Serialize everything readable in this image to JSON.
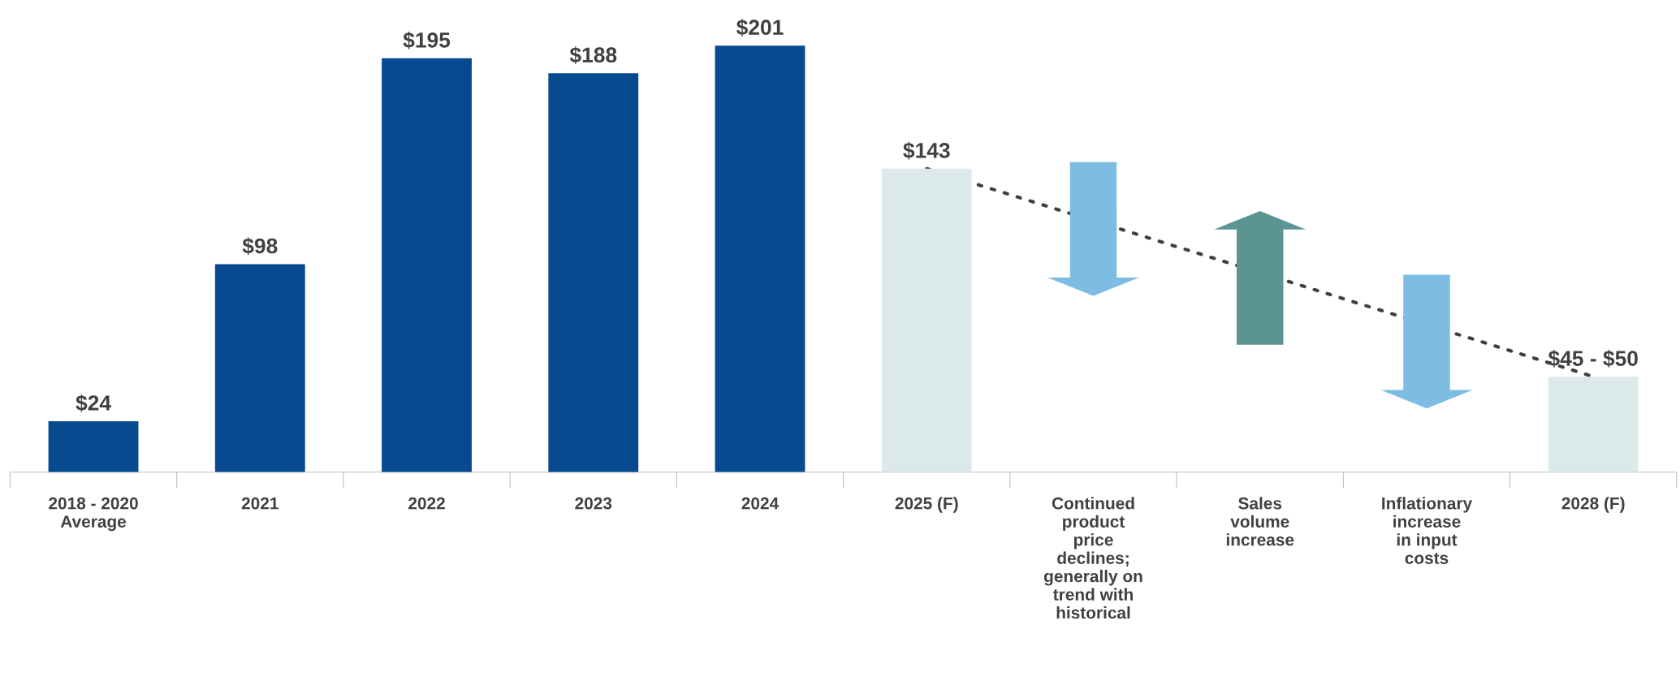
{
  "chart_data": {
    "type": "bar",
    "categories": [
      "2018 - 2020\nAverage",
      "2021",
      "2022",
      "2023",
      "2024",
      "2025 (F)",
      "Continued\nproduct\nprice\ndeclines;\ngenerally on\ntrend with\nhistorical",
      "Sales\nvolume\nincrease",
      "Inflationary\nincrease\nin input\ncosts",
      "2028 (F)"
    ],
    "series": [
      {
        "colors": [
          "#074a8f",
          "#074a8f",
          "#074a8f",
          "#074a8f",
          "#074a8f",
          "#dce9ea",
          null,
          null,
          null,
          "#dce9ea"
        ],
        "values": [
          24,
          98,
          195,
          188,
          201,
          143,
          null,
          null,
          null,
          45
        ],
        "value_labels": [
          "$24",
          "$98",
          "$195",
          "$188",
          "$201",
          "$143",
          null,
          null,
          null,
          "$45 - $50"
        ]
      },
      {
        "type": "line",
        "x": [
          "2025 (F)",
          "2028 (F)"
        ],
        "values": [
          143,
          45
        ],
        "color": "#404040",
        "line_style": "dotted"
      }
    ],
    "grid": false,
    "legend": false
  }
}
